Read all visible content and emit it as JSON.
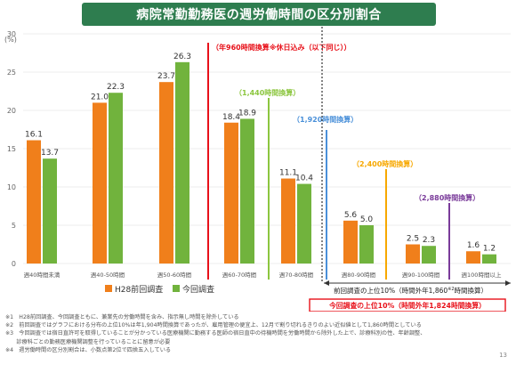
{
  "title": "病院常勤勤務医の週労働時間の区分別割合",
  "page_number": "13",
  "colors": {
    "title_bg": "#2e7d4f",
    "h28": "#f07f1b",
    "current": "#71b33d",
    "red": "#e8111a",
    "green_line": "#8cc63f",
    "blue_line": "#4a90d9",
    "orange_line": "#f7a800",
    "purple_line": "#7a3b9a"
  },
  "chart_data": {
    "type": "bar",
    "y_unit": "(%)",
    "ylim": [
      0,
      30
    ],
    "yticks": [
      0,
      5,
      10,
      15,
      20,
      25,
      30
    ],
    "categories": [
      "週40時間未満",
      "週40-50時間",
      "週50-60時間",
      "週60-70時間",
      "週70-80時間",
      "週80-90時間",
      "週90-100時間",
      "週100時間以上"
    ],
    "series": [
      {
        "name": "H28前回調査",
        "values": [
          16.1,
          21.0,
          23.7,
          18.4,
          11.1,
          5.6,
          2.5,
          1.6
        ]
      },
      {
        "name": "今回調査",
        "values": [
          13.7,
          22.3,
          26.3,
          18.9,
          10.4,
          5.0,
          2.3,
          1.2
        ]
      }
    ],
    "value_labels": [
      [
        "16.1",
        "21.0",
        "23.7",
        "18.4",
        "11.1",
        "5.6",
        "2.5",
        "1.6"
      ],
      [
        "13.7",
        "22.3",
        "26.3",
        "18.9",
        "10.4",
        "5.0",
        "2.3",
        "1.2"
      ]
    ],
    "annotations": {
      "red_label": "（年960時間換算※休日込み（以下同じ））",
      "green_label": "（1,440時間換算）",
      "blue_label": "（1,920時間換算）",
      "orange_label": "（2,400時間換算）",
      "purple_label": "（2,880時間換算）",
      "previous_top10": "前回調査の上位10%（時間外年1,860",
      "previous_top10_sup": "※2",
      "previous_top10_end": "時間換算）",
      "current_top10": "今回調査の上位10%（時間外年1,824時間換算）"
    }
  },
  "notes": [
    "※1　H28前回調査、今回調査ともに、兼業先の労働時間を含み、指示無し時間を除外している",
    "※2　前回調査ではグラフにおける分布の上位10%は年1,904時間換算であったが、雇用管理の便宜上、12月で割り切れるきりのよい近似値として1,860時間としている",
    "※3　今回調査では宿日直許可を取得していることが分かっている医療機関に勤務する医師の宿日直中の待機時間を労働時間から除外した上で、診療科別の性、年齢調整、",
    "　　診療科ごとの勤務医療機関調整を行っていることに留意が必要",
    "※4　週労働時間の区分別割合は、小数点第2位で四捨五入している"
  ]
}
